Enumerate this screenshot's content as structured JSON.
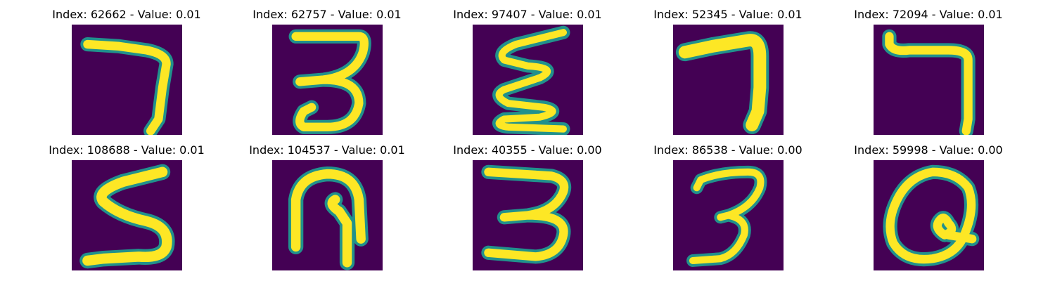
{
  "panel_colors": {
    "background": "#440154",
    "stroke_outer": "#21918c",
    "stroke_mid": "#5ec962",
    "stroke_core": "#fde725"
  },
  "cells": [
    {
      "title": "Index: 62662 - Value: 0.01",
      "digit": "7"
    },
    {
      "title": "Index: 62757 - Value: 0.01",
      "digit": "3"
    },
    {
      "title": "Index: 97407 - Value: 0.01",
      "digit": "3 (rotated)"
    },
    {
      "title": "Index: 52345 - Value: 0.01",
      "digit": "7"
    },
    {
      "title": "Index: 72094 - Value: 0.01",
      "digit": "7"
    },
    {
      "title": "Index: 108688 - Value: 0.01",
      "digit": "5"
    },
    {
      "title": "Index: 104537 - Value: 0.01",
      "digit": "9 (rotated)"
    },
    {
      "title": "Index: 40355 - Value: 0.00",
      "digit": "3"
    },
    {
      "title": "Index: 86538 - Value: 0.00",
      "digit": "3"
    },
    {
      "title": "Index: 59998 - Value: 0.00",
      "digit": "0"
    }
  ]
}
